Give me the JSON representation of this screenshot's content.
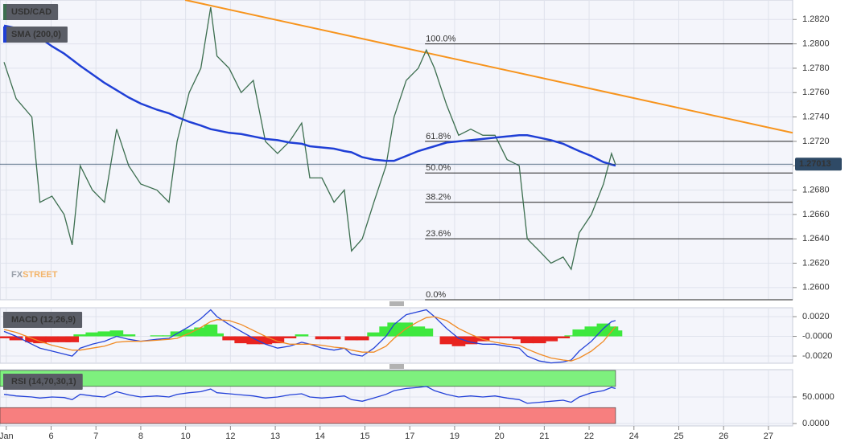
{
  "chart_data": [
    {
      "type": "line",
      "xlim": [
        -0.14,
        17.54
      ],
      "ylim": [
        1.259,
        1.2836
      ],
      "yticks": [
        {
          "value": 1.26,
          "label": "1.2600"
        },
        {
          "value": 1.262,
          "label": "1.2620"
        },
        {
          "value": 1.264,
          "label": "1.2640"
        },
        {
          "value": 1.266,
          "label": "1.2660"
        },
        {
          "value": 1.268,
          "label": "1.2680"
        },
        {
          "value": 1.27,
          "label": "1.2700"
        },
        {
          "value": 1.272,
          "label": "1.2720"
        },
        {
          "value": 1.274,
          "label": "1.2740"
        },
        {
          "value": 1.276,
          "label": "1.2760"
        },
        {
          "value": 1.278,
          "label": "1.2780"
        },
        {
          "value": 1.28,
          "label": "1.2800"
        },
        {
          "value": 1.282,
          "label": "1.2820"
        }
      ],
      "x": [
        -0.05,
        0.22,
        0.57,
        0.75,
        1.02,
        1.29,
        1.47,
        1.65,
        1.92,
        2.19,
        2.46,
        2.73,
        3.0,
        3.36,
        3.63,
        3.81,
        4.08,
        4.34,
        4.56,
        4.7,
        4.97,
        5.24,
        5.51,
        5.78,
        6.05,
        6.32,
        6.59,
        6.77,
        7.04,
        7.31,
        7.54,
        7.7,
        7.94,
        8.2,
        8.47,
        8.65,
        8.92,
        9.19,
        9.37,
        9.55,
        9.82,
        10.09,
        10.36,
        10.63,
        10.9,
        11.17,
        11.44,
        11.62,
        11.89,
        12.15,
        12.42,
        12.6,
        12.78,
        13.05,
        13.32,
        13.5,
        13.59
      ],
      "series": [
        {
          "name": "USD/CAD",
          "color": "#3c6e4f",
          "values": [
            1.2785,
            1.2755,
            1.274,
            1.267,
            1.2675,
            1.266,
            1.2635,
            1.27,
            1.268,
            1.267,
            1.273,
            1.27,
            1.2685,
            1.268,
            1.267,
            1.272,
            1.276,
            1.278,
            1.283,
            1.279,
            1.278,
            1.276,
            1.277,
            1.272,
            1.271,
            1.272,
            1.2735,
            1.269,
            1.269,
            1.267,
            1.268,
            1.263,
            1.264,
            1.267,
            1.27,
            1.274,
            1.277,
            1.278,
            1.2795,
            1.278,
            1.275,
            1.2725,
            1.273,
            1.2725,
            1.2725,
            1.2705,
            1.27,
            1.264,
            1.263,
            1.262,
            1.2625,
            1.2615,
            1.2645,
            1.266,
            1.2685,
            1.271,
            1.2701
          ]
        },
        {
          "name": "SMA (200,0)",
          "color": "#1f3fd6",
          "values": [
            1.2815,
            1.2813,
            1.2808,
            1.2805,
            1.2798,
            1.2792,
            1.2787,
            1.2782,
            1.2775,
            1.2768,
            1.2762,
            1.2756,
            1.2751,
            1.2746,
            1.2743,
            1.274,
            1.2736,
            1.2733,
            1.273,
            1.2729,
            1.2727,
            1.2726,
            1.2724,
            1.2722,
            1.2721,
            1.2719,
            1.2718,
            1.2716,
            1.2715,
            1.2714,
            1.2712,
            1.2711,
            1.2707,
            1.2705,
            1.2704,
            1.2704,
            1.2708,
            1.2712,
            1.2714,
            1.2716,
            1.2719,
            1.272,
            1.2721,
            1.2722,
            1.2723,
            1.2724,
            1.2725,
            1.2725,
            1.2723,
            1.2721,
            1.2718,
            1.2715,
            1.2712,
            1.2708,
            1.2703,
            1.2701,
            1.27
          ]
        }
      ],
      "levels_start": 9.34,
      "levels": [
        {
          "label": "100.0%",
          "value": 1.28
        },
        {
          "label": "61.8%",
          "value": 1.272
        },
        {
          "label": "50.0%",
          "value": 1.2694
        },
        {
          "label": "38.2%",
          "value": 1.267
        },
        {
          "label": "23.6%",
          "value": 1.264
        },
        {
          "label": "0.0%",
          "value": 1.259
        }
      ],
      "trendline": {
        "x": [
          3.99,
          17.54
        ],
        "values": [
          1.2836,
          1.2727
        ],
        "color": "#f7941d"
      },
      "last": 1.27013,
      "watermark": [
        "FX",
        "STREET"
      ]
    },
    {
      "type": "line",
      "title": "MACD (12,26,9)",
      "xlim": [
        -0.14,
        17.54
      ],
      "ylim": [
        -0.00273,
        0.0029
      ],
      "yticks": [
        {
          "value": 0.002,
          "label": "0.0020"
        },
        {
          "value": 0,
          "label": "-0.0000"
        },
        {
          "value": -0.002,
          "label": "-0.0020"
        }
      ],
      "x": [
        -0.05,
        0.22,
        0.57,
        0.75,
        1.02,
        1.29,
        1.47,
        1.65,
        1.92,
        2.19,
        2.46,
        2.73,
        3.0,
        3.36,
        3.63,
        3.81,
        4.08,
        4.34,
        4.56,
        4.7,
        4.97,
        5.24,
        5.51,
        5.78,
        6.05,
        6.32,
        6.59,
        6.77,
        7.04,
        7.31,
        7.54,
        7.7,
        7.94,
        8.2,
        8.47,
        8.65,
        8.92,
        9.19,
        9.37,
        9.55,
        9.82,
        10.09,
        10.36,
        10.63,
        10.9,
        11.17,
        11.44,
        11.62,
        11.89,
        12.15,
        12.42,
        12.6,
        12.78,
        13.05,
        13.32,
        13.5,
        13.59
      ],
      "series": [
        {
          "type": "bar",
          "color": "#3ee83e",
          "negative_color": "#e8231f",
          "values": [
            -0.0002,
            -0.0004,
            -0.0006,
            -0.0007,
            -0.0006,
            -0.0006,
            -0.0006,
            0.0002,
            0.0004,
            0.0005,
            0.0006,
            0.0002,
            0,
            0.0001,
            0.0001,
            0.0005,
            0.0007,
            0.0009,
            0.0012,
            0.0003,
            -0.0004,
            -0.0007,
            -0.0008,
            -0.0008,
            -0.0007,
            -0.0002,
            0.0002,
            0,
            -0.0003,
            -0.0003,
            0,
            -0.0004,
            -0.0004,
            0.0004,
            0.001,
            0.0014,
            0.0014,
            0.001,
            0.0008,
            0,
            -0.0008,
            -0.001,
            -0.0008,
            -0.0005,
            -0.0002,
            -0.0002,
            -0.0003,
            -0.0007,
            -0.0007,
            -0.0005,
            -0.0002,
            0.0001,
            0.0007,
            0.001,
            0.0013,
            0.001,
            0.0006
          ]
        },
        {
          "type": "line",
          "color": "#2341d8",
          "values": [
            0.0005,
            0,
            -0.0008,
            -0.0012,
            -0.0015,
            -0.0018,
            -0.002,
            -0.0012,
            -0.0008,
            -0.0005,
            0,
            -0.0003,
            -0.0005,
            -0.0003,
            -0.0002,
            0.0003,
            0.001,
            0.0018,
            0.0027,
            0.002,
            0.0012,
            0.0005,
            -0.0002,
            -0.0008,
            -0.0012,
            -0.001,
            -0.0006,
            -0.0008,
            -0.0012,
            -0.0014,
            -0.0012,
            -0.0018,
            -0.002,
            -0.0012,
            0,
            0.0012,
            0.0022,
            0.0025,
            0.0027,
            0.002,
            0.0008,
            -0.0002,
            -0.0006,
            -0.0008,
            -0.0008,
            -0.001,
            -0.0012,
            -0.002,
            -0.0025,
            -0.0027,
            -0.0026,
            -0.0024,
            -0.0015,
            -0.0005,
            0.0008,
            0.0015,
            0.0016
          ]
        },
        {
          "type": "line",
          "color": "#f08a24",
          "values": [
            0.0007,
            0.0004,
            -0.0002,
            -0.0005,
            -0.0009,
            -0.0012,
            -0.0014,
            -0.0014,
            -0.0012,
            -0.001,
            -0.0006,
            -0.0005,
            -0.0005,
            -0.0004,
            -0.0003,
            -0.0002,
            0.0003,
            0.0009,
            0.0015,
            0.0017,
            0.0016,
            0.0012,
            0.0006,
            0,
            -0.0005,
            -0.0008,
            -0.0008,
            -0.0008,
            -0.0009,
            -0.0011,
            -0.0012,
            -0.0014,
            -0.0016,
            -0.0016,
            -0.001,
            -0.0002,
            0.0008,
            0.0015,
            0.0019,
            0.002,
            0.0016,
            0.0008,
            0.0002,
            -0.0003,
            -0.0006,
            -0.0008,
            -0.0009,
            -0.0013,
            -0.0018,
            -0.0022,
            -0.0024,
            -0.0025,
            -0.0022,
            -0.0015,
            -0.0005,
            0.0005,
            0.001
          ]
        }
      ]
    },
    {
      "type": "line",
      "title": "RSI (14,70,30,1)",
      "xlim": [
        -0.14,
        17.54
      ],
      "ylim": [
        -4.5,
        101.5
      ],
      "yticks": [
        {
          "value": 50,
          "label": "50.0000"
        },
        {
          "value": 0,
          "label": "0.0000"
        }
      ],
      "xticks": [
        {
          "value": 0,
          "label": "Jan"
        },
        {
          "value": 1,
          "label": "6"
        },
        {
          "value": 2,
          "label": "7"
        },
        {
          "value": 3,
          "label": "8"
        },
        {
          "value": 4,
          "label": "10"
        },
        {
          "value": 5,
          "label": "12"
        },
        {
          "value": 6,
          "label": "13"
        },
        {
          "value": 7,
          "label": "14"
        },
        {
          "value": 8,
          "label": "15"
        },
        {
          "value": 9,
          "label": "17"
        },
        {
          "value": 10,
          "label": "19"
        },
        {
          "value": 11,
          "label": "20"
        },
        {
          "value": 12,
          "label": "21"
        },
        {
          "value": 13,
          "label": "22"
        },
        {
          "value": 14,
          "label": "24"
        },
        {
          "value": 15,
          "label": "25"
        },
        {
          "value": 16,
          "label": "26"
        },
        {
          "value": 17,
          "label": "27"
        }
      ],
      "bands": [
        {
          "from": 70,
          "to": 100,
          "color": "#7ef07e"
        },
        {
          "from": 0,
          "to": 30,
          "color": "#f77f7f"
        }
      ],
      "x": [
        -0.05,
        0.22,
        0.57,
        0.75,
        1.02,
        1.29,
        1.47,
        1.65,
        1.92,
        2.19,
        2.46,
        2.73,
        3.0,
        3.36,
        3.63,
        3.81,
        4.08,
        4.34,
        4.56,
        4.7,
        4.97,
        5.24,
        5.51,
        5.78,
        6.05,
        6.32,
        6.59,
        6.77,
        7.04,
        7.31,
        7.54,
        7.7,
        7.94,
        8.2,
        8.47,
        8.65,
        8.92,
        9.19,
        9.37,
        9.55,
        9.82,
        10.09,
        10.36,
        10.63,
        10.9,
        11.17,
        11.44,
        11.62,
        11.89,
        12.15,
        12.42,
        12.6,
        12.78,
        13.05,
        13.32,
        13.5,
        13.59
      ],
      "series": [
        {
          "type": "line",
          "color": "#2341d8",
          "values": [
            55,
            52,
            50,
            48,
            50,
            49,
            45,
            55,
            52,
            50,
            60,
            54,
            50,
            52,
            50,
            55,
            58,
            60,
            65,
            58,
            56,
            54,
            52,
            48,
            50,
            54,
            56,
            50,
            48,
            50,
            52,
            45,
            42,
            48,
            55,
            62,
            66,
            68,
            70,
            62,
            55,
            50,
            52,
            50,
            52,
            48,
            45,
            38,
            40,
            42,
            44,
            40,
            50,
            58,
            62,
            68,
            66
          ]
        }
      ]
    }
  ]
}
